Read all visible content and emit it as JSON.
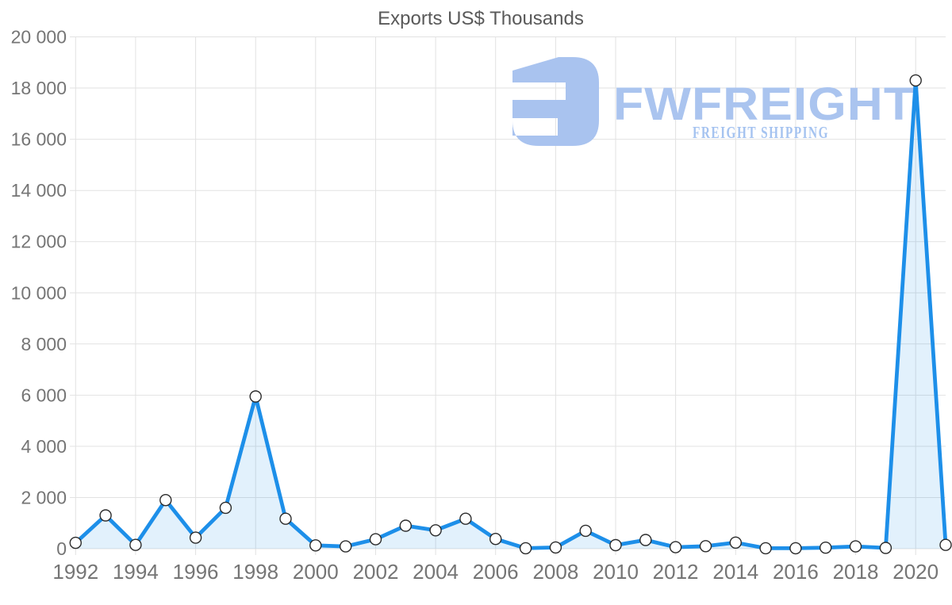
{
  "title": "Exports US$ Thousands",
  "watermark": {
    "brand": "FWFREIGHT",
    "tagline": "FREIGHT SHIPPING",
    "icon": "fwfreight-logo-mark",
    "brand_color": "#aac4ef",
    "tagline_color": "#a5c3f0",
    "icon_color": "#a9c3ef"
  },
  "colors": {
    "line": "#1d8fe9",
    "area_fill": "rgba(30,144,235,0.13)",
    "marker_fill": "#ffffff",
    "marker_stroke": "#2b2b2b",
    "grid": "#e2e2e2",
    "axis_text": "#757575",
    "title_text": "#595959"
  },
  "chart_data": {
    "type": "area",
    "title": "Exports US$ Thousands",
    "series_name": "Exports US$ Thousands",
    "x": [
      1992,
      1993,
      1994,
      1995,
      1996,
      1997,
      1998,
      1999,
      2000,
      2001,
      2002,
      2003,
      2004,
      2005,
      2006,
      2007,
      2008,
      2009,
      2010,
      2011,
      2012,
      2013,
      2014,
      2015,
      2016,
      2017,
      2018,
      2019,
      2020,
      2021
    ],
    "values": [
      230,
      1300,
      150,
      1900,
      430,
      1600,
      5950,
      1170,
      130,
      90,
      370,
      900,
      720,
      1170,
      380,
      20,
      50,
      700,
      140,
      340,
      60,
      100,
      240,
      20,
      20,
      40,
      90,
      30,
      18300,
      150
    ],
    "xlabel": "",
    "ylabel": "",
    "ylim": [
      0,
      20000
    ],
    "y_ticks": [
      0,
      2000,
      4000,
      6000,
      8000,
      10000,
      12000,
      14000,
      16000,
      18000,
      20000
    ],
    "y_tick_labels": [
      "0",
      "2 000",
      "4 000",
      "6 000",
      "8 000",
      "10 000",
      "12 000",
      "14 000",
      "16 000",
      "18 000",
      "20 000"
    ],
    "x_tick_labels": [
      "1992",
      "1994",
      "1996",
      "1998",
      "2000",
      "2002",
      "2004",
      "2006",
      "2008",
      "2010",
      "2012",
      "2014",
      "2016",
      "2018",
      "2020"
    ],
    "grid": true,
    "legend": "none",
    "marker": "circle"
  }
}
